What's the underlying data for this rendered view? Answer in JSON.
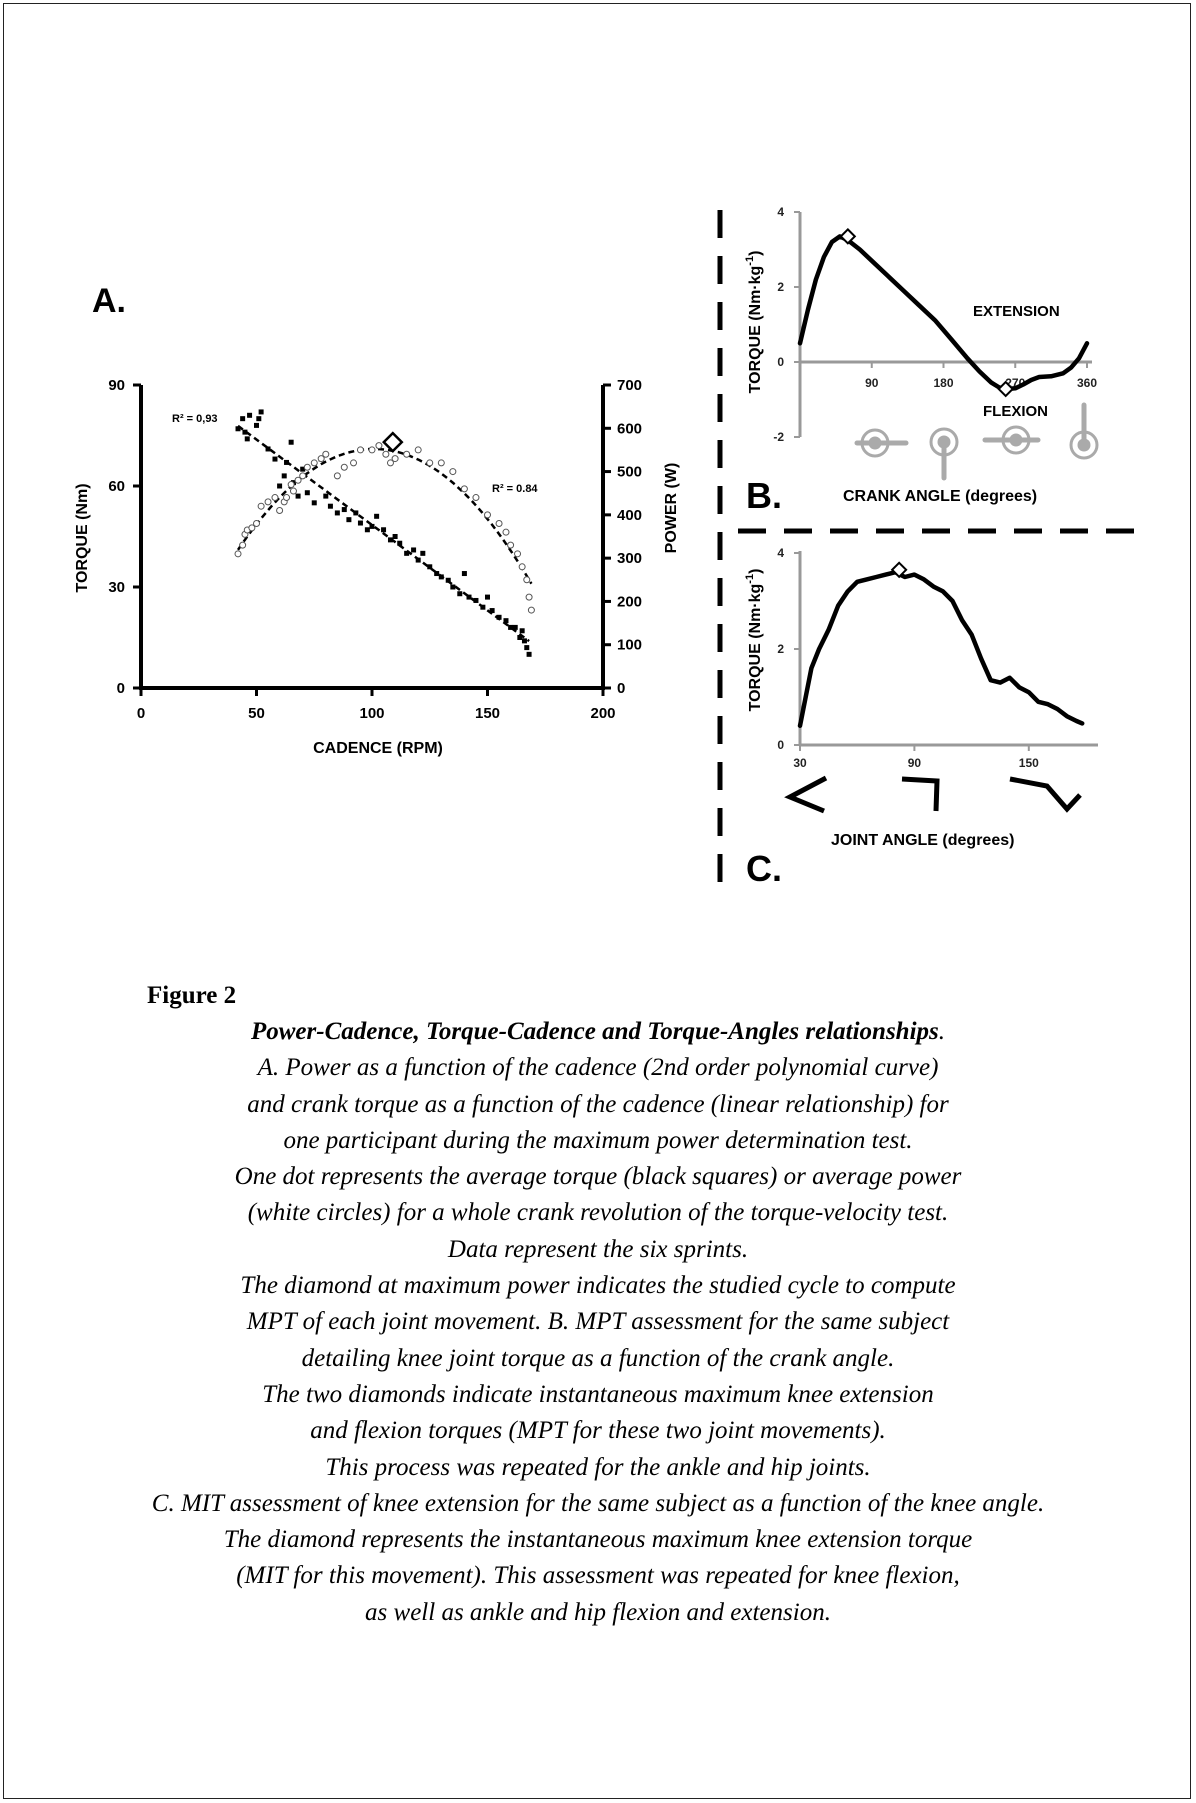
{
  "figure": {
    "panel_a": {
      "label": "A.",
      "x_axis_label": "CADENCE (RPM)",
      "y_left_label": "TORQUE (Nm)",
      "y_right_label": "POWER (W)",
      "x_ticks": [
        "0",
        "50",
        "100",
        "150",
        "200"
      ],
      "y_left_ticks": [
        "0",
        "30",
        "60",
        "90"
      ],
      "y_right_ticks": [
        "0",
        "100",
        "200",
        "300",
        "400",
        "500",
        "600",
        "700"
      ],
      "r2_torque": "R² = 0,93",
      "r2_power": "R² = 0.84"
    },
    "panel_b": {
      "label": "B.",
      "x_axis_label": "CRANK ANGLE (degrees)",
      "y_label": "TORQUE (Nm·kg-1)",
      "x_ticks": [
        "90",
        "180",
        "270",
        "360"
      ],
      "y_ticks": [
        "4",
        "2",
        "0",
        "-2"
      ],
      "extension_label": "EXTENSION",
      "flexion_label": "FLEXION"
    },
    "panel_c": {
      "label": "C.",
      "x_axis_label": "JOINT ANGLE (degrees)",
      "y_label": "TORQUE (Nm·kg-1)",
      "x_ticks": [
        "30",
        "90",
        "150"
      ],
      "y_ticks": [
        "4",
        "2",
        "0"
      ]
    }
  },
  "chart_data": [
    {
      "type": "scatter",
      "panel": "A",
      "xlabel": "CADENCE (RPM)",
      "ylabel": "TORQUE (Nm)",
      "y2label": "POWER (W)",
      "xlim": [
        0,
        200
      ],
      "ylim": [
        0,
        90
      ],
      "y2lim": [
        0,
        700
      ],
      "series": [
        {
          "name": "torque",
          "marker": "black square",
          "axis": "left",
          "fit": "linear",
          "x": [
            42,
            44,
            45,
            46,
            47,
            50,
            51,
            52,
            55,
            58,
            60,
            62,
            63,
            65,
            66,
            68,
            70,
            72,
            75,
            78,
            80,
            82,
            85,
            88,
            90,
            93,
            95,
            98,
            100,
            102,
            105,
            108,
            110,
            112,
            115,
            118,
            120,
            122,
            125,
            128,
            130,
            133,
            135,
            138,
            140,
            142,
            145,
            148,
            150,
            152,
            155,
            158,
            160,
            162,
            164,
            165,
            166,
            167,
            168
          ],
          "y": [
            77,
            80,
            76,
            74,
            81,
            78,
            80,
            82,
            71,
            68,
            60,
            63,
            67,
            73,
            61,
            57,
            65,
            58,
            55,
            68,
            57,
            54,
            52,
            53,
            50,
            52,
            49,
            47,
            48,
            51,
            47,
            44,
            45,
            43,
            40,
            41,
            38,
            40,
            36,
            34,
            33,
            32,
            30,
            28,
            34,
            27,
            26,
            24,
            27,
            23,
            21,
            20,
            18,
            18,
            15,
            17,
            14,
            12,
            10
          ]
        },
        {
          "name": "power",
          "marker": "white circle",
          "axis": "right",
          "fit": "2nd order polynomial",
          "x": [
            42,
            44,
            45,
            46,
            48,
            50,
            52,
            55,
            58,
            60,
            62,
            63,
            65,
            66,
            68,
            70,
            72,
            75,
            78,
            80,
            85,
            88,
            92,
            95,
            100,
            103,
            106,
            108,
            110,
            115,
            120,
            125,
            130,
            135,
            140,
            145,
            150,
            155,
            158,
            160,
            163,
            165,
            167,
            168,
            169
          ],
          "y": [
            310,
            330,
            355,
            365,
            370,
            380,
            420,
            430,
            440,
            410,
            430,
            440,
            470,
            455,
            480,
            490,
            510,
            520,
            530,
            540,
            490,
            510,
            520,
            550,
            550,
            560,
            540,
            520,
            530,
            540,
            550,
            520,
            520,
            500,
            460,
            440,
            400,
            380,
            360,
            330,
            310,
            280,
            250,
            210,
            180
          ]
        }
      ],
      "annotations": [
        "R² = 0,93",
        "R² = 0.84",
        "diamond at maximum power"
      ],
      "max_power_marker": {
        "x": 109,
        "y": 568
      }
    },
    {
      "type": "line",
      "panel": "B",
      "xlabel": "CRANK ANGLE (degrees)",
      "ylabel": "TORQUE (Nm·kg-1)",
      "xlim": [
        0,
        360
      ],
      "ylim": [
        -2,
        4
      ],
      "x": [
        0,
        10,
        20,
        30,
        40,
        50,
        60,
        75,
        90,
        110,
        130,
        150,
        170,
        190,
        210,
        225,
        240,
        250,
        260,
        270,
        280,
        290,
        300,
        315,
        330,
        340,
        350,
        360
      ],
      "y": [
        0.5,
        1.4,
        2.2,
        2.8,
        3.2,
        3.35,
        3.25,
        3.0,
        2.7,
        2.3,
        1.9,
        1.5,
        1.1,
        0.6,
        0.1,
        -0.25,
        -0.55,
        -0.68,
        -0.72,
        -0.7,
        -0.6,
        -0.48,
        -0.4,
        -0.38,
        -0.3,
        -0.15,
        0.1,
        0.5
      ],
      "markers": [
        {
          "label": "max extension",
          "x": 60,
          "y": 3.35
        },
        {
          "label": "max flexion",
          "x": 258,
          "y": -0.72
        }
      ],
      "annotations": [
        "EXTENSION",
        "FLEXION"
      ]
    },
    {
      "type": "line",
      "panel": "C",
      "xlabel": "JOINT ANGLE (degrees)",
      "ylabel": "TORQUE (Nm·kg-1)",
      "xlim": [
        30,
        180
      ],
      "ylim": [
        0,
        4
      ],
      "x": [
        30,
        33,
        36,
        40,
        45,
        50,
        55,
        60,
        65,
        70,
        75,
        80,
        85,
        90,
        95,
        100,
        105,
        110,
        115,
        120,
        125,
        130,
        135,
        140,
        145,
        150,
        155,
        160,
        165,
        170,
        175,
        178
      ],
      "y": [
        0.4,
        1.0,
        1.6,
        2.0,
        2.4,
        2.9,
        3.2,
        3.4,
        3.45,
        3.5,
        3.55,
        3.6,
        3.5,
        3.55,
        3.45,
        3.3,
        3.2,
        3.0,
        2.6,
        2.3,
        1.8,
        1.35,
        1.3,
        1.4,
        1.2,
        1.1,
        0.9,
        0.85,
        0.75,
        0.6,
        0.5,
        0.45
      ],
      "markers": [
        {
          "label": "max extension",
          "x": 82,
          "y": 3.65
        }
      ]
    }
  ],
  "caption": {
    "figure_label": "Figure 2",
    "title": "Power-Cadence, Torque-Cadence and Torque-Angles relationships",
    "title_end": ".",
    "lines": [
      "A. Power as a function of the cadence (2nd order polynomial curve)",
      "and crank torque as a function of the cadence (linear relationship) for",
      "one participant during the maximum power determination test.",
      "One dot represents the average torque (black squares) or average power",
      "(white circles) for a whole crank revolution of the torque-velocity test.",
      "Data represent the six sprints.",
      "The diamond at maximum power indicates the studied cycle to compute",
      "MPT of each joint movement. B. MPT assessment for the same subject",
      "detailing knee joint torque as a function of the crank angle.",
      "The two diamonds indicate instantaneous maximum knee extension",
      "and flexion torques (MPT for these two joint movements).",
      "This process was repeated for the ankle and hip joints.",
      "C. MIT assessment of knee extension for the same subject as a function of the knee angle.",
      "The diamond represents the instantaneous maximum knee extension torque",
      "(MIT for this movement). This assessment was repeated for knee flexion,",
      "as well as ankle and hip flexion and extension."
    ]
  }
}
